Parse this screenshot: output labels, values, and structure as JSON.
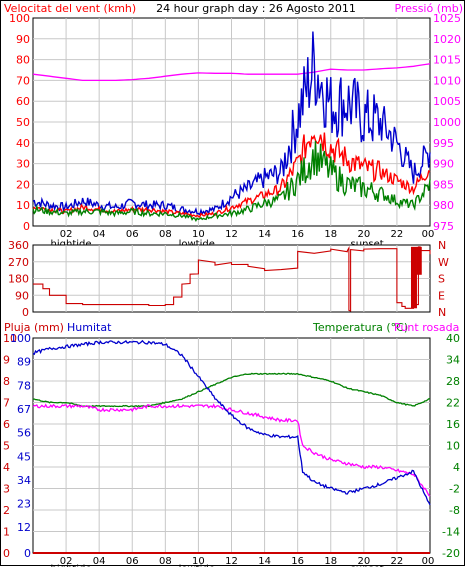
{
  "header": {
    "left_label": "Velocitat del vent (kmh)",
    "title": "24 hour graph day : 26 Agosto 2011",
    "right_label": "Pressió (mb)"
  },
  "colors": {
    "wind": "#ff0000",
    "gust": "#0000cc",
    "avg": "#008000",
    "pressure": "#ff00ff",
    "direction": "#cc0000",
    "rain": "#cc0000",
    "humidity": "#0000cc",
    "temperature": "#008000",
    "dewpoint": "#ff00ff",
    "grid": "#c8c8c8",
    "axis": "#000000"
  },
  "x_axis": {
    "ticks": [
      "02",
      "04",
      "06",
      "08",
      "10",
      "12",
      "14",
      "16",
      "18",
      "20",
      "22",
      "00"
    ],
    "event_labels": [
      {
        "text": "hightide",
        "hour": 2.3
      },
      {
        "text": "lowtide",
        "hour": 9.9
      },
      {
        "text": "sunset",
        "hour": 20.2
      }
    ]
  },
  "chart_data": [
    {
      "type": "line",
      "name": "wind-pressure",
      "xlabel": "",
      "y_left": {
        "label": "Velocitat del vent (kmh)",
        "range": [
          0,
          100
        ],
        "ticks": [
          "0",
          "10",
          "20",
          "30",
          "40",
          "50",
          "60",
          "70",
          "80",
          "90",
          "100"
        ]
      },
      "y_right": {
        "label": "Pressió (mb)",
        "range": [
          975,
          1025
        ],
        "ticks": [
          "975",
          "980",
          "985",
          "990",
          "995",
          "1000",
          "1005",
          "1010",
          "1015",
          "1020",
          "1025"
        ]
      },
      "series": [
        {
          "key": "gust",
          "axis": "left",
          "x": [
            0,
            1,
            2,
            3,
            4,
            5,
            6,
            7,
            8,
            9,
            10,
            11,
            12,
            13,
            14,
            15,
            16,
            17,
            18,
            19,
            20,
            21,
            22,
            23,
            24
          ],
          "y": [
            12,
            10,
            9,
            12,
            10,
            9,
            11,
            10,
            10,
            8,
            7,
            8,
            14,
            18,
            23,
            26,
            52,
            78,
            58,
            60,
            52,
            50,
            40,
            25,
            36
          ]
        },
        {
          "key": "wind",
          "axis": "left",
          "x": [
            0,
            1,
            2,
            3,
            4,
            5,
            6,
            7,
            8,
            9,
            10,
            11,
            12,
            13,
            14,
            15,
            16,
            17,
            18,
            19,
            20,
            21,
            22,
            23,
            24
          ],
          "y": [
            9,
            8,
            7,
            9,
            8,
            7,
            8,
            8,
            7,
            6,
            5,
            6,
            9,
            12,
            15,
            18,
            30,
            48,
            38,
            32,
            28,
            26,
            22,
            18,
            28
          ]
        },
        {
          "key": "avg",
          "axis": "left",
          "x": [
            0,
            1,
            2,
            3,
            4,
            5,
            6,
            7,
            8,
            9,
            10,
            11,
            12,
            13,
            14,
            15,
            16,
            17,
            18,
            19,
            20,
            21,
            22,
            23,
            24
          ],
          "y": [
            8,
            7,
            6,
            7,
            7,
            6,
            7,
            6,
            6,
            5,
            3,
            5,
            6,
            8,
            11,
            13,
            22,
            34,
            26,
            20,
            18,
            16,
            12,
            10,
            20
          ]
        },
        {
          "key": "pressure",
          "axis": "right",
          "x": [
            0,
            1,
            2,
            3,
            4,
            5,
            6,
            7,
            8,
            9,
            10,
            11,
            12,
            13,
            14,
            15,
            16,
            17,
            18,
            19,
            20,
            21,
            22,
            23,
            24
          ],
          "y": [
            1011.5,
            1011,
            1010.5,
            1010,
            1010,
            1010,
            1010.2,
            1010.5,
            1011,
            1011.5,
            1011.8,
            1011.7,
            1011.7,
            1011.5,
            1011.5,
            1011.5,
            1011.5,
            1012,
            1012.7,
            1012.5,
            1012.5,
            1012.8,
            1013,
            1013.4,
            1014
          ]
        }
      ]
    },
    {
      "type": "line",
      "name": "wind-direction",
      "y_left": {
        "label": "",
        "range": [
          0,
          360
        ],
        "ticks": [
          "0",
          "90",
          "180",
          "270",
          "360"
        ]
      },
      "y_right": {
        "label": "",
        "compass": [
          "N",
          "W",
          "S",
          "E",
          "N"
        ]
      },
      "series": [
        {
          "key": "direction",
          "axis": "left",
          "x": [
            0,
            0.6,
            1,
            2,
            3,
            4,
            5,
            6,
            7,
            8,
            8.5,
            9,
            9.5,
            10,
            11,
            12,
            13,
            14,
            15,
            16,
            17,
            18,
            19,
            19.1,
            19.2,
            20,
            21,
            22,
            22.3,
            22.5,
            23,
            23.3,
            23.4,
            24
          ],
          "y": [
            150,
            125,
            90,
            45,
            40,
            40,
            40,
            40,
            35,
            40,
            80,
            150,
            200,
            275,
            260,
            250,
            240,
            230,
            230,
            320,
            320,
            330,
            335,
            0,
            330,
            340,
            340,
            50,
            30,
            20,
            40,
            350,
            330,
            310
          ]
        }
      ]
    },
    {
      "type": "line",
      "name": "rain-humidity-temperature",
      "y_left": {
        "label": "Pluja (mm)",
        "range": [
          0,
          10
        ],
        "ticks": [
          "0",
          "1",
          "2",
          "3",
          "4",
          "5",
          "6",
          "7",
          "8",
          "9",
          "10"
        ]
      },
      "y_left2": {
        "label": "Humitat",
        "range": [
          0,
          100
        ],
        "ticks": [
          "0",
          "12",
          "23",
          "34",
          "45",
          "56",
          "67",
          "78",
          "89",
          "100"
        ]
      },
      "y_right": {
        "label": "Temperatura (°C)",
        "label2": "Punt rosada",
        "range": [
          -20,
          40
        ],
        "ticks": [
          "-20",
          "-14",
          "-8",
          "-2",
          "4",
          "10",
          "16",
          "22",
          "28",
          "34",
          "40"
        ]
      },
      "series": [
        {
          "key": "humidity",
          "axis": "left2",
          "x": [
            0,
            1,
            2,
            3,
            4,
            5,
            6,
            7,
            8,
            9,
            10,
            11,
            12,
            13,
            14,
            15,
            16,
            16.3,
            17,
            18,
            19,
            20,
            21,
            22,
            23,
            24
          ],
          "y": [
            93,
            95,
            96,
            97,
            98,
            98,
            98,
            98,
            97,
            92,
            82,
            72,
            64,
            58,
            55,
            54,
            54,
            38,
            33,
            30,
            28,
            30,
            32,
            35,
            38,
            22
          ]
        },
        {
          "key": "temperature",
          "axis": "right",
          "x": [
            0,
            1,
            2,
            3,
            4,
            5,
            6,
            7,
            8,
            9,
            10,
            11,
            12,
            13,
            14,
            15,
            16,
            17,
            18,
            19,
            20,
            21,
            22,
            23,
            24
          ],
          "y": [
            23,
            22,
            22,
            21,
            21,
            21,
            21,
            21,
            22,
            23,
            25,
            27,
            29,
            30,
            30,
            30,
            30,
            29,
            28,
            26,
            25,
            24,
            22,
            21,
            23
          ]
        },
        {
          "key": "dewpoint",
          "axis": "right",
          "x": [
            0,
            1,
            2,
            3,
            4,
            5,
            6,
            7,
            8,
            9,
            10,
            11,
            12,
            13,
            14,
            15,
            16,
            16.3,
            17,
            18,
            19,
            20,
            21,
            22,
            23,
            24
          ],
          "y": [
            21,
            21,
            21,
            21,
            20,
            20,
            20,
            21,
            21,
            21,
            21,
            21,
            20,
            19,
            18,
            17,
            17,
            10,
            8,
            6,
            5,
            4,
            4,
            3,
            2,
            -4
          ]
        },
        {
          "key": "rain",
          "axis": "left",
          "x": [
            0,
            24
          ],
          "y": [
            0,
            0
          ]
        }
      ]
    }
  ]
}
